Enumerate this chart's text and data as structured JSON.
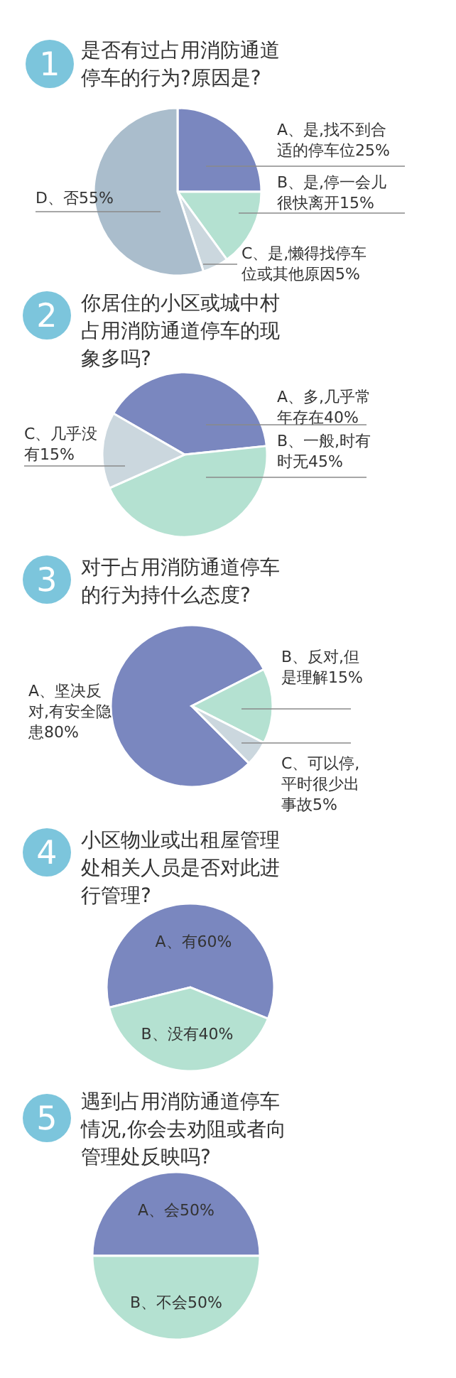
{
  "chart_data": [
    {
      "type": "pie",
      "title": "是否有过占用消防通道停车的行为?原因是?",
      "annotations": [
        "1"
      ],
      "categories": [
        "A、是,找不到合适的停车位",
        "B、是,停一会儿很快离开",
        "C、是,懒得找停车位或其他原因",
        "D、否"
      ],
      "values": [
        25,
        15,
        5,
        55
      ],
      "value_labels": [
        "25%",
        "15%",
        "5%",
        "55%"
      ],
      "colors": [
        "#7a87bf",
        "#b4e1d1",
        "#cbd7de",
        "#aabdcc"
      ]
    },
    {
      "type": "pie",
      "title": "你居住的小区或城中村占用消防通道停车的现象多吗?",
      "annotations": [
        "2"
      ],
      "categories": [
        "A、多,几乎常年存在",
        "B、一般,时有时无",
        "C、几乎没有"
      ],
      "values": [
        40,
        45,
        15
      ],
      "value_labels": [
        "40%",
        "45%",
        "15%"
      ],
      "colors": [
        "#7a87bf",
        "#b4e1d1",
        "#cbd7de"
      ]
    },
    {
      "type": "pie",
      "title": "对于占用消防通道停车的行为持什么态度?",
      "annotations": [
        "3"
      ],
      "categories": [
        "A、坚决反对,有安全隐患",
        "B、反对,但是理解",
        "C、可以停,平时很少出事故"
      ],
      "values": [
        80,
        15,
        5
      ],
      "value_labels": [
        "80%",
        "15%",
        "5%"
      ],
      "colors": [
        "#7a87bf",
        "#b4e1d1",
        "#cbd7de"
      ]
    },
    {
      "type": "pie",
      "title": "小区物业或出租屋管理处相关人员是否对此进行管理?",
      "annotations": [
        "4"
      ],
      "categories": [
        "A、有",
        "B、没有"
      ],
      "values": [
        60,
        40
      ],
      "value_labels": [
        "60%",
        "40%"
      ],
      "colors": [
        "#7a87bf",
        "#b4e1d1"
      ]
    },
    {
      "type": "pie",
      "title": "遇到占用消防通道停车情况,你会去劝阻或者向管理处反映吗?",
      "annotations": [
        "5"
      ],
      "categories": [
        "A、会",
        "B、不会"
      ],
      "values": [
        50,
        50
      ],
      "value_labels": [
        "50%",
        "50%"
      ],
      "colors": [
        "#7a87bf",
        "#b4e1d1"
      ]
    }
  ]
}
